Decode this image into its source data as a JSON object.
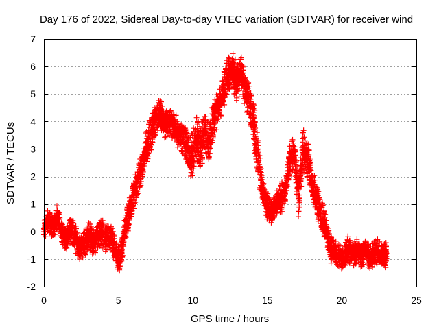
{
  "chart_data": {
    "type": "scatter",
    "title": "Day 176 of 2022, Sidereal Day-to-day VTEC variation (SDTVAR) for receiver wind",
    "xlabel": "GPS time / hours",
    "ylabel": "SDTVAR / TECUs",
    "xlim": [
      0,
      25
    ],
    "ylim": [
      -2,
      7
    ],
    "xticks": [
      0,
      5,
      10,
      15,
      20,
      25
    ],
    "yticks": [
      -2,
      -1,
      0,
      1,
      2,
      3,
      4,
      5,
      6,
      7
    ],
    "grid": true,
    "marker": "+",
    "series_color": "#ff0000",
    "x": [
      0.0,
      0.3,
      0.6,
      0.9,
      1.2,
      1.5,
      1.8,
      2.1,
      2.4,
      2.7,
      3.0,
      3.3,
      3.6,
      3.9,
      4.2,
      4.5,
      4.8,
      5.1,
      5.4,
      5.7,
      6.0,
      6.3,
      6.6,
      6.9,
      7.2,
      7.5,
      7.8,
      8.1,
      8.4,
      8.7,
      9.0,
      9.3,
      9.6,
      9.9,
      10.2,
      10.5,
      10.8,
      11.1,
      11.4,
      11.7,
      12.0,
      12.3,
      12.6,
      12.9,
      13.2,
      13.5,
      13.8,
      14.1,
      14.4,
      14.7,
      15.0,
      15.3,
      15.6,
      15.9,
      16.2,
      16.5,
      16.8,
      17.1,
      17.4,
      17.7,
      18.0,
      18.3,
      18.6,
      18.9,
      19.2,
      19.5,
      19.8,
      20.1,
      20.4,
      20.7,
      21.0,
      21.3,
      21.6,
      21.9,
      22.2,
      22.5,
      22.8,
      23.0
    ],
    "values": [
      0.1,
      0.4,
      0.2,
      0.5,
      0.0,
      -0.3,
      0.1,
      -0.2,
      -0.6,
      -0.5,
      -0.1,
      -0.4,
      -0.2,
      0.0,
      -0.3,
      -0.2,
      -0.8,
      -1.1,
      0.0,
      0.6,
      1.3,
      1.8,
      2.4,
      3.1,
      3.6,
      4.1,
      4.3,
      3.9,
      4.0,
      3.8,
      3.6,
      3.4,
      3.1,
      2.6,
      3.4,
      3.0,
      3.6,
      3.3,
      4.1,
      4.6,
      5.0,
      5.6,
      5.9,
      5.4,
      5.8,
      5.1,
      4.6,
      3.9,
      2.5,
      1.4,
      0.9,
      0.7,
      1.0,
      1.2,
      1.4,
      2.6,
      2.9,
      1.2,
      3.0,
      2.6,
      1.8,
      1.2,
      0.6,
      0.1,
      -0.6,
      -0.7,
      -0.9,
      -1.0,
      -0.6,
      -0.8,
      -0.7,
      -0.9,
      -0.6,
      -1.0,
      -0.7,
      -0.8,
      -0.9,
      -0.8
    ],
    "spread": [
      0.5,
      0.5,
      0.5,
      0.5,
      0.4,
      0.5,
      0.5,
      0.6,
      0.5,
      0.5,
      0.6,
      0.5,
      0.5,
      0.6,
      0.5,
      0.6,
      0.5,
      0.6,
      0.5,
      0.6,
      0.6,
      0.6,
      0.6,
      0.7,
      0.7,
      0.7,
      0.6,
      0.6,
      0.6,
      0.6,
      0.6,
      0.7,
      0.8,
      1.0,
      0.9,
      0.9,
      0.8,
      0.8,
      0.7,
      0.7,
      0.7,
      0.8,
      0.8,
      0.8,
      0.8,
      0.8,
      0.8,
      0.8,
      0.8,
      0.6,
      0.5,
      0.5,
      0.5,
      0.6,
      0.6,
      0.6,
      0.7,
      0.9,
      0.9,
      0.8,
      0.7,
      0.7,
      0.7,
      0.6,
      0.6,
      0.5,
      0.5,
      0.5,
      0.5,
      0.5,
      0.5,
      0.5,
      0.5,
      0.5,
      0.5,
      0.5,
      0.5,
      0.5
    ]
  }
}
